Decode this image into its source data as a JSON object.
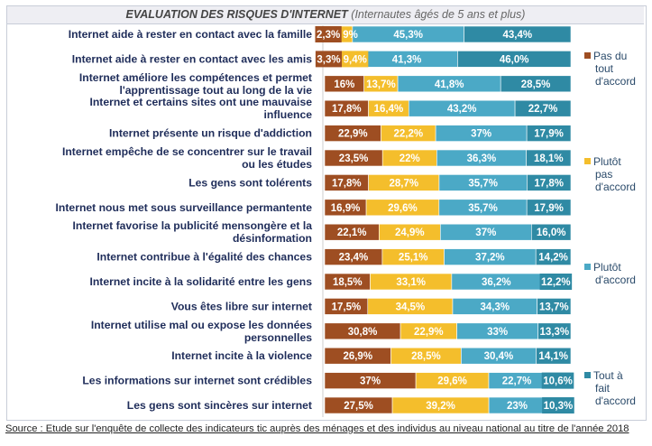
{
  "chart_data": {
    "type": "bar",
    "orientation": "horizontal-stacked-100",
    "title": "EVALUATION DES RISQUES D'INTERNET",
    "subtitle": "(Internautes âgés de 5 ans et plus)",
    "categories": [
      [
        "Internet aide à rester en contact avec la famille"
      ],
      [
        "Internet aide à rester en contact avec les amis"
      ],
      [
        "Internet améliore les compétences et permet",
        "l'apprentissage tout au long de la vie"
      ],
      [
        "Internet et certains sites ont une mauvaise",
        "influence"
      ],
      [
        "Internet présente un risque d'addiction"
      ],
      [
        "Internet empêche de se concentrer sur le travail",
        "ou les études"
      ],
      [
        "Les gens sont tolérents"
      ],
      [
        "Internet nous met sous surveillance permantente"
      ],
      [
        "Internet favorise la publicité mensongère et la",
        "désinformation"
      ],
      [
        "Internet contribue à l'égalité des chances"
      ],
      [
        "Internet incite à la solidarité entre les gens"
      ],
      [
        "Vous êtes libre sur internet"
      ],
      [
        "Internet utilise mal ou expose les données",
        "personnelles"
      ],
      [
        "Internet incite à la violence"
      ],
      [
        "Les informations sur internet sont crédibles"
      ],
      [
        "Les gens sont sincères sur internet"
      ]
    ],
    "series": [
      {
        "name": "Pas du tout d'accord",
        "legend_lines": [
          "Pas du",
          "tout",
          "d'accord"
        ],
        "color": "#9e4e22",
        "values": [
          2.3,
          3.3,
          16,
          17.8,
          22.9,
          23.5,
          17.8,
          16.9,
          22.1,
          23.4,
          18.5,
          17.5,
          30.8,
          26.9,
          37,
          27.5
        ],
        "labels": [
          "2,3%",
          "3,3%",
          "16%",
          "17,8%",
          "22,9%",
          "23,5%",
          "17,8%",
          "16,9%",
          "22,1%",
          "23,4%",
          "18,5%",
          "17,5%",
          "30,8%",
          "26,9%",
          "37%",
          "27,5%"
        ]
      },
      {
        "name": "Plutôt pas d'accord",
        "legend_lines": [
          "Plutôt",
          "pas",
          "d'accord"
        ],
        "color": "#f4be2c",
        "values": [
          9,
          9.4,
          13.7,
          16.4,
          22.2,
          22,
          28.7,
          29.6,
          24.9,
          25.1,
          33.1,
          34.5,
          22.9,
          28.5,
          29.6,
          39.2
        ],
        "labels": [
          "9%",
          "9,4%",
          "13,7%",
          "16,4%",
          "22,2%",
          "22%",
          "28,7%",
          "29,6%",
          "24,9%",
          "25,1%",
          "33,1%",
          "34,5%",
          "22,9%",
          "28,5%",
          "29,6%",
          "39,2%"
        ]
      },
      {
        "name": "Plutôt d'accord",
        "legend_lines": [
          "Plutôt",
          "d'accord"
        ],
        "color": "#4ba9c6",
        "values": [
          45.3,
          41.3,
          41.8,
          43.2,
          37,
          36.3,
          35.7,
          35.7,
          37,
          37.2,
          36.2,
          34.3,
          33,
          30.4,
          22.7,
          23
        ],
        "labels": [
          "45,3%",
          "41,3%",
          "41,8%",
          "43,2%",
          "37%",
          "36,3%",
          "35,7%",
          "35,7%",
          "37%",
          "37,2%",
          "36,2%",
          "34,3%",
          "33%",
          "30,4%",
          "22,7%",
          "23%"
        ]
      },
      {
        "name": "Tout à fait d'accord",
        "legend_lines": [
          "Tout à",
          "fait",
          "d'accord"
        ],
        "color": "#2f8aa4",
        "values": [
          43.4,
          46.0,
          28.5,
          22.7,
          17.9,
          18.1,
          17.8,
          17.9,
          16.0,
          14.2,
          12.2,
          13.7,
          13.3,
          14.1,
          10.6,
          10.3
        ],
        "labels": [
          "43,4%",
          "46,0%",
          "28,5%",
          "22,7%",
          "17,9%",
          "18,1%",
          "17,8%",
          "17,9%",
          "16,0%",
          "14,2%",
          "12,2%",
          "13,7%",
          "13,3%",
          "14,1%",
          "10,6%",
          "10,3%"
        ]
      }
    ],
    "xlim": [
      0,
      100
    ],
    "grid": false,
    "legend_position": "right"
  },
  "source": "Source : Etude sur l'enquête de collecte des indicateurs tic auprès des ménages et des individus au niveau national au titre de l'année 2018"
}
